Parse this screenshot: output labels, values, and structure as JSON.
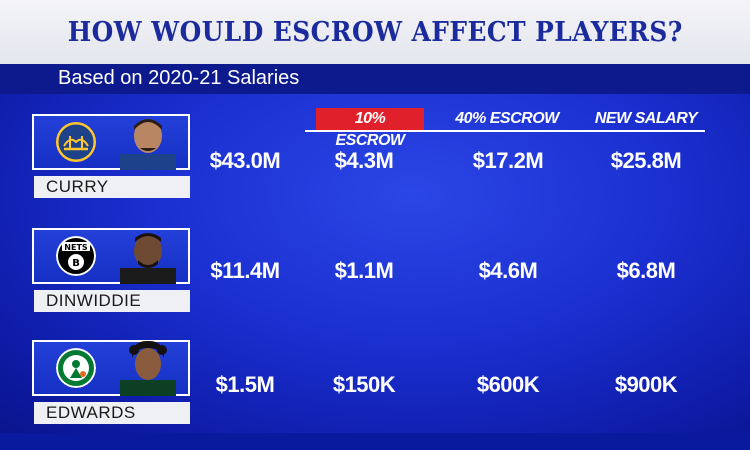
{
  "title": "HOW WOULD ESCROW AFFECT PLAYERS?",
  "subtitle": "Based on 2020-21 Salaries",
  "columns": {
    "escrow10": "10% ESCROW",
    "escrow40": "40% ESCROW",
    "new_salary": "NEW SALARY"
  },
  "colors": {
    "title_text": "#1b2a9c",
    "background": "#1b2fd0",
    "escrow10_highlight": "#e0202a"
  },
  "players": [
    {
      "name": "CURRY",
      "team_logo": "warriors-logo",
      "salary": "$43.0M",
      "escrow10": "$4.3M",
      "escrow40": "$17.2M",
      "new_salary": "$25.8M"
    },
    {
      "name": "DINWIDDIE",
      "team_logo": "nets-logo",
      "salary": "$11.4M",
      "escrow10": "$1.1M",
      "escrow40": "$4.6M",
      "new_salary": "$6.8M"
    },
    {
      "name": "EDWARDS",
      "team_logo": "celtics-logo",
      "salary": "$1.5M",
      "escrow10": "$150K",
      "escrow40": "$600K",
      "new_salary": "$900K"
    }
  ]
}
